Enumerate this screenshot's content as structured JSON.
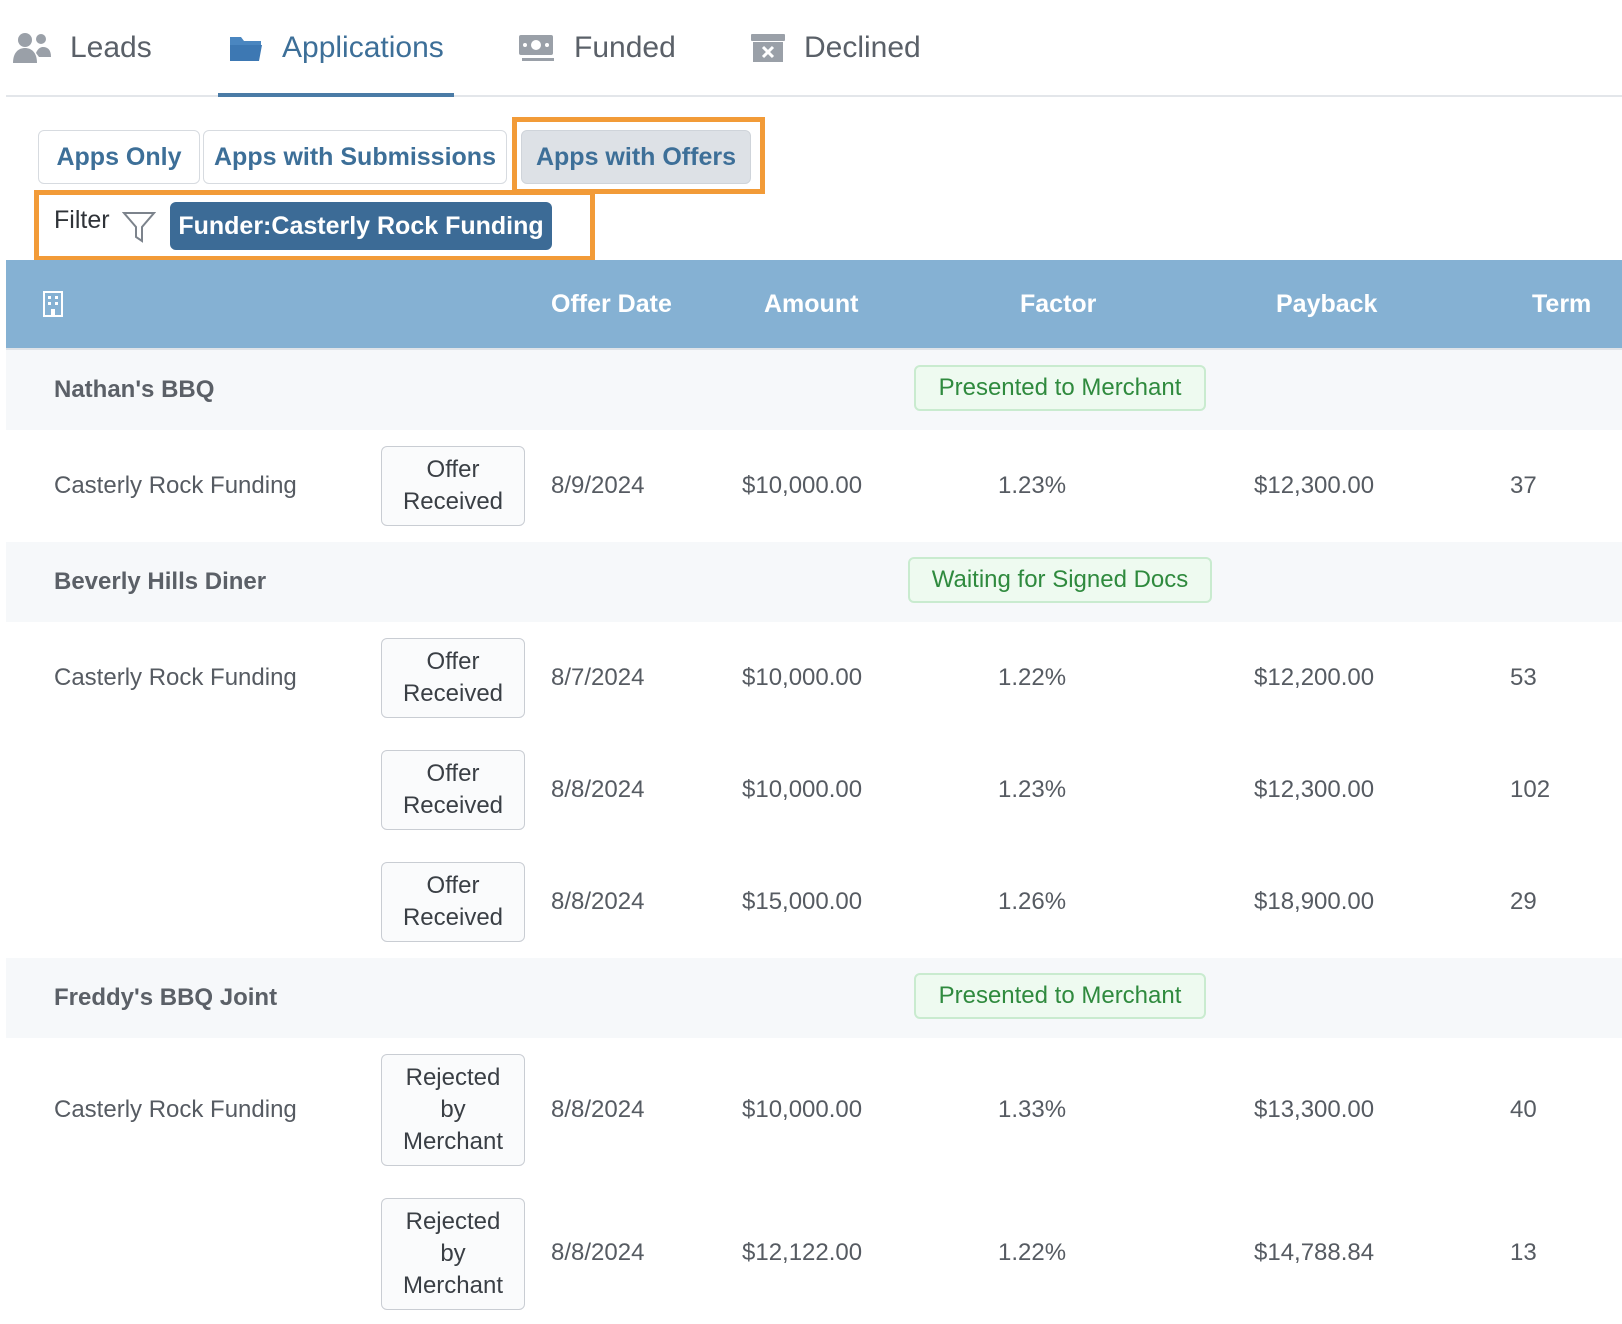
{
  "tabs": [
    {
      "label": "Leads",
      "icon": "users-icon"
    },
    {
      "label": "Applications",
      "icon": "folder-icon"
    },
    {
      "label": "Funded",
      "icon": "money-icon"
    },
    {
      "label": "Declined",
      "icon": "archive-x-icon"
    }
  ],
  "active_tab": "Applications",
  "subfilters": {
    "apps_only": "Apps Only",
    "apps_with_submissions": "Apps with Submissions",
    "apps_with_offers": "Apps with Offers",
    "active": "Apps with Offers"
  },
  "filter": {
    "label": "Filter",
    "chip": "Funder:Casterly Rock Funding"
  },
  "columns": {
    "offer_date": "Offer Date",
    "amount": "Amount",
    "factor": "Factor",
    "payback": "Payback",
    "term": "Term"
  },
  "colors": {
    "accent": "#3d6f98",
    "header_bg": "#85b1d3",
    "highlight": "#f29b38",
    "status_green": "#2f8a3e"
  },
  "groups": [
    {
      "name": "Nathan's BBQ",
      "status": "Presented to Merchant",
      "rows": [
        {
          "funder": "Casterly Rock Funding",
          "badge_lines": [
            "Offer",
            "Received"
          ],
          "date": "8/9/2024",
          "amount": "$10,000.00",
          "factor": "1.23%",
          "payback": "$12,300.00",
          "term": "37"
        }
      ]
    },
    {
      "name": "Beverly Hills Diner",
      "status": "Waiting for Signed Docs",
      "rows": [
        {
          "funder": "Casterly Rock Funding",
          "badge_lines": [
            "Offer",
            "Received"
          ],
          "date": "8/7/2024",
          "amount": "$10,000.00",
          "factor": "1.22%",
          "payback": "$12,200.00",
          "term": "53"
        },
        {
          "funder": "",
          "badge_lines": [
            "Offer",
            "Received"
          ],
          "date": "8/8/2024",
          "amount": "$10,000.00",
          "factor": "1.23%",
          "payback": "$12,300.00",
          "term": "102"
        },
        {
          "funder": "",
          "badge_lines": [
            "Offer",
            "Received"
          ],
          "date": "8/8/2024",
          "amount": "$15,000.00",
          "factor": "1.26%",
          "payback": "$18,900.00",
          "term": "29"
        }
      ]
    },
    {
      "name": "Freddy's BBQ Joint",
      "status": "Presented to Merchant",
      "rows": [
        {
          "funder": "Casterly Rock Funding",
          "badge_lines": [
            "Rejected",
            "by",
            "Merchant"
          ],
          "date": "8/8/2024",
          "amount": "$10,000.00",
          "factor": "1.33%",
          "payback": "$13,300.00",
          "term": "40"
        },
        {
          "funder": "",
          "badge_lines": [
            "Rejected",
            "by",
            "Merchant"
          ],
          "date": "8/8/2024",
          "amount": "$12,122.00",
          "factor": "1.22%",
          "payback": "$14,788.84",
          "term": "13"
        }
      ]
    }
  ]
}
